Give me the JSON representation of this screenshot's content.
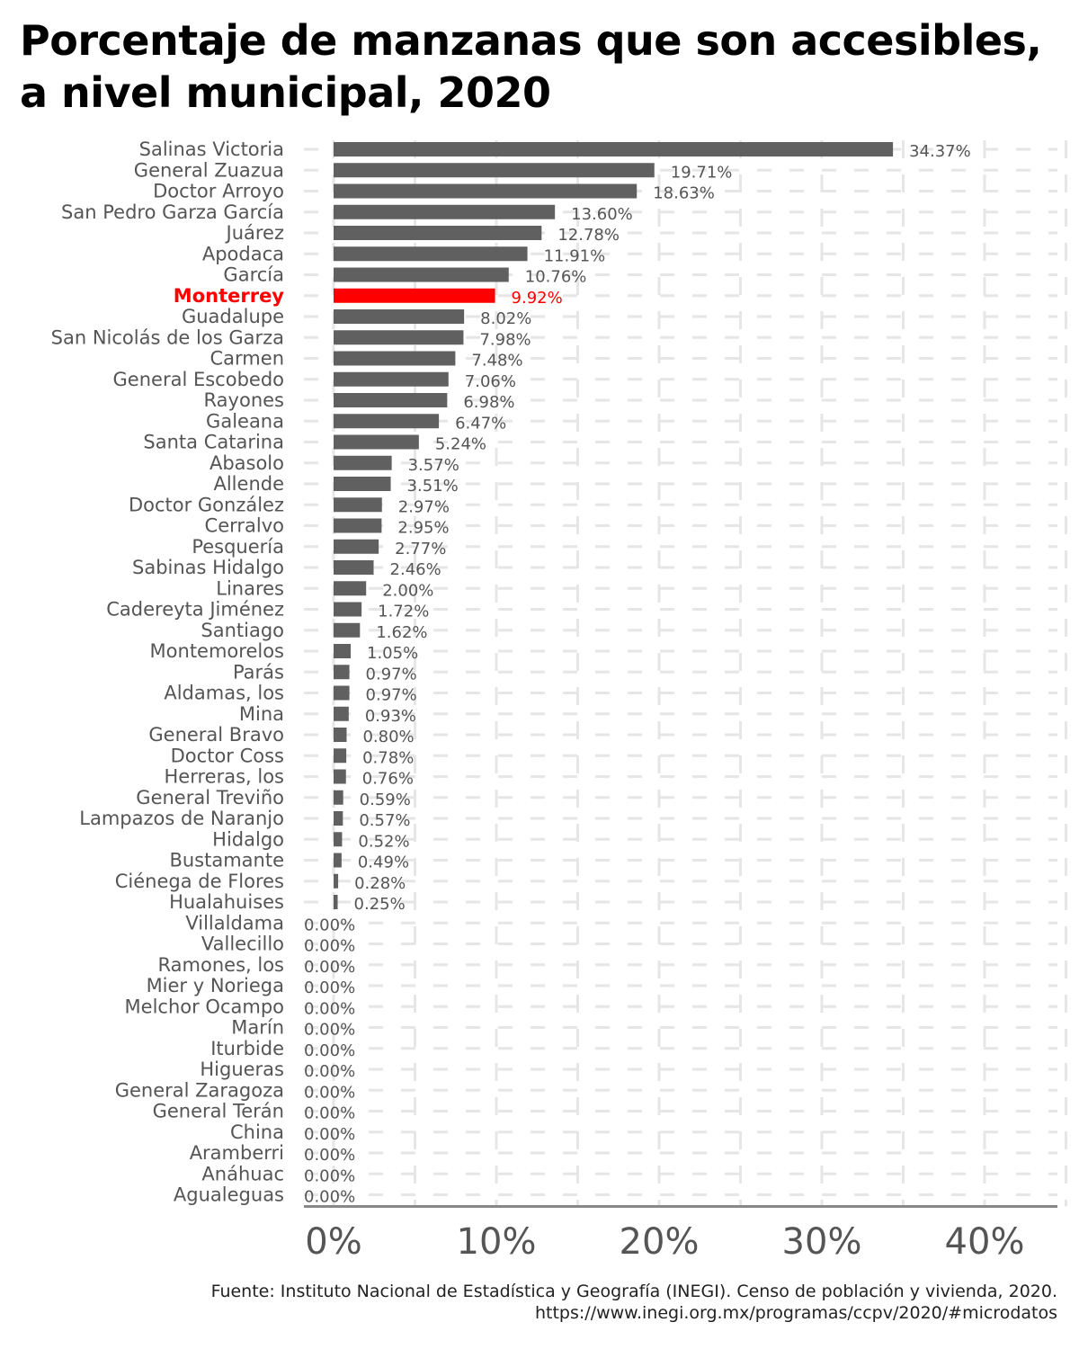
{
  "title": "Porcentaje de manzanas que son accesibles, a nivel municipal, 2020",
  "source": "Fuente: Instituto Nacional de Estadística y Geografía (INEGI). Censo de población y vivienda, 2020. https://www.inegi.org.mx/programas/ccpv/2020/#microdatos",
  "colors": {
    "bar": "#606060",
    "highlight": "#ff0000",
    "label": "#555555",
    "grid": "#e6e6e6",
    "axis": "#888888"
  },
  "chart_data": {
    "type": "bar",
    "orientation": "horizontal",
    "highlight": "Monterrey",
    "xlim": [
      0,
      45
    ],
    "xticks": [
      0,
      10,
      20,
      30,
      40
    ],
    "xtick_labels": [
      "0%",
      "10%",
      "20%",
      "30%",
      "40%"
    ],
    "grid": true,
    "categories": [
      "Salinas Victoria",
      "General Zuazua",
      "Doctor Arroyo",
      "San Pedro Garza García",
      "Juárez",
      "Apodaca",
      "García",
      "Monterrey",
      "Guadalupe",
      "San Nicolás de los Garza",
      "Carmen",
      "General Escobedo",
      "Rayones",
      "Galeana",
      "Santa Catarina",
      "Abasolo",
      "Allende",
      "Doctor González",
      "Cerralvo",
      "Pesquería",
      "Sabinas Hidalgo",
      "Linares",
      "Cadereyta Jiménez",
      "Santiago",
      "Montemorelos",
      "Parás",
      "Aldamas, los",
      "Mina",
      "General Bravo",
      "Doctor Coss",
      "Herreras, los",
      "General Treviño",
      "Lampazos de Naranjo",
      "Hidalgo",
      "Bustamante",
      "Ciénega de Flores",
      "Hualahuises",
      "Villaldama",
      "Vallecillo",
      "Ramones, los",
      "Mier y Noriega",
      "Melchor Ocampo",
      "Marín",
      "Iturbide",
      "Higueras",
      "General Zaragoza",
      "General Terán",
      "China",
      "Aramberri",
      "Anáhuac",
      "Agualeguas"
    ],
    "values": [
      34.37,
      19.71,
      18.63,
      13.6,
      12.78,
      11.91,
      10.76,
      9.92,
      8.02,
      7.98,
      7.48,
      7.06,
      6.98,
      6.47,
      5.24,
      3.57,
      3.51,
      2.97,
      2.95,
      2.77,
      2.46,
      2.0,
      1.72,
      1.62,
      1.05,
      0.97,
      0.97,
      0.93,
      0.8,
      0.78,
      0.76,
      0.59,
      0.57,
      0.52,
      0.49,
      0.28,
      0.25,
      0,
      0,
      0,
      0,
      0,
      0,
      0,
      0,
      0,
      0,
      0,
      0,
      0,
      0
    ],
    "value_labels": [
      "34.37%",
      "19.71%",
      "18.63%",
      "13.60%",
      "12.78%",
      "11.91%",
      "10.76%",
      "9.92%",
      "8.02%",
      "7.98%",
      "7.48%",
      "7.06%",
      "6.98%",
      "6.47%",
      "5.24%",
      "3.57%",
      "3.51%",
      "2.97%",
      "2.95%",
      "2.77%",
      "2.46%",
      "2.00%",
      "1.72%",
      "1.62%",
      "1.05%",
      "0.97%",
      "0.97%",
      "0.93%",
      "0.80%",
      "0.78%",
      "0.76%",
      "0.59%",
      "0.57%",
      "0.52%",
      "0.49%",
      "0.28%",
      "0.25%",
      "0.00%",
      "0.00%",
      "0.00%",
      "0.00%",
      "0.00%",
      "0.00%",
      "0.00%",
      "0.00%",
      "0.00%",
      "0.00%",
      "0.00%",
      "0.00%",
      "0.00%",
      "0.00%"
    ]
  }
}
